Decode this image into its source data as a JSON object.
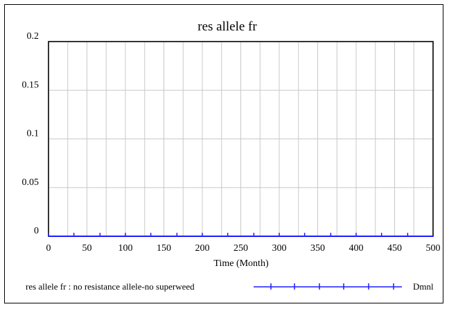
{
  "chart_data": {
    "type": "line",
    "title": "res allele fr",
    "xlabel": "Time (Month)",
    "ylabel": "",
    "xlim": [
      0,
      500
    ],
    "ylim": [
      0,
      0.2
    ],
    "x_ticks": [
      0,
      50,
      100,
      150,
      200,
      250,
      300,
      350,
      400,
      450,
      500
    ],
    "y_ticks": [
      0,
      0.05,
      0.1,
      0.15,
      0.2
    ],
    "grid": true,
    "series": [
      {
        "name": "res allele fr : no resistance allele-no superweed",
        "unit": "Dmnl",
        "color": "#1a1aff",
        "marker": "tick",
        "x": [
          0,
          500
        ],
        "values": [
          0,
          0
        ],
        "marker_x": [
          0,
          33,
          67,
          100,
          133,
          167,
          200,
          233,
          267,
          300,
          333,
          367,
          400,
          433,
          467
        ]
      }
    ],
    "legend_position": "bottom"
  }
}
